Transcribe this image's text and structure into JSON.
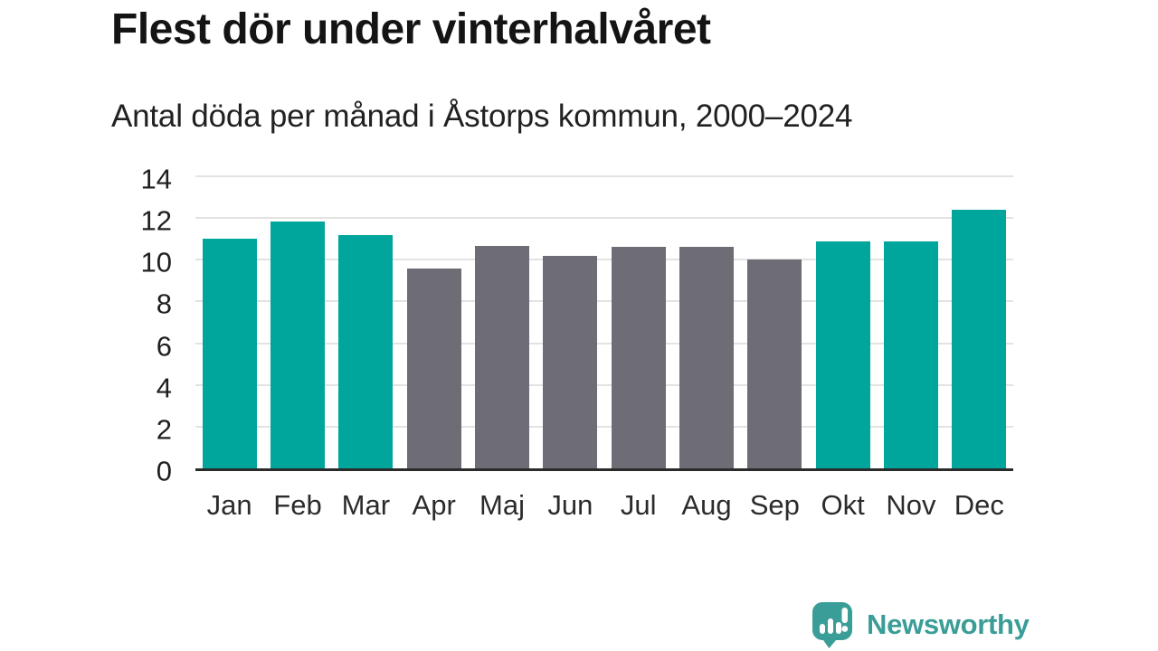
{
  "header": {
    "title": "Flest dör under vinterhalvåret",
    "subtitle": "Antal döda per månad i Åstorps kommun, 2000–2024"
  },
  "chart_data": {
    "type": "bar",
    "title": "Flest dör under vinterhalvåret",
    "subtitle": "Antal döda per månad i Åstorps kommun, 2000–2024",
    "categories": [
      "Jan",
      "Feb",
      "Mar",
      "Apr",
      "Maj",
      "Jun",
      "Jul",
      "Aug",
      "Sep",
      "Okt",
      "Nov",
      "Dec"
    ],
    "values": [
      11.0,
      11.85,
      11.2,
      9.6,
      10.65,
      10.2,
      10.6,
      10.6,
      10.0,
      10.9,
      10.9,
      12.4
    ],
    "highlighted_categories": [
      "Jan",
      "Feb",
      "Mar",
      "Okt",
      "Nov",
      "Dec"
    ],
    "bar_color_highlight": "#00a59b",
    "bar_color_muted": "#6e6d75",
    "xlabel": "",
    "ylabel": "",
    "ylim": [
      0,
      14
    ],
    "yticks": [
      0,
      2,
      4,
      6,
      8,
      10,
      12,
      14
    ],
    "grid": true,
    "legend_position": "none"
  },
  "footer": {
    "brand": "Newsworthy",
    "brand_color": "#3a9d97",
    "logo_icon": "newsworthy-speech-bubble-bar-chart-icon"
  }
}
